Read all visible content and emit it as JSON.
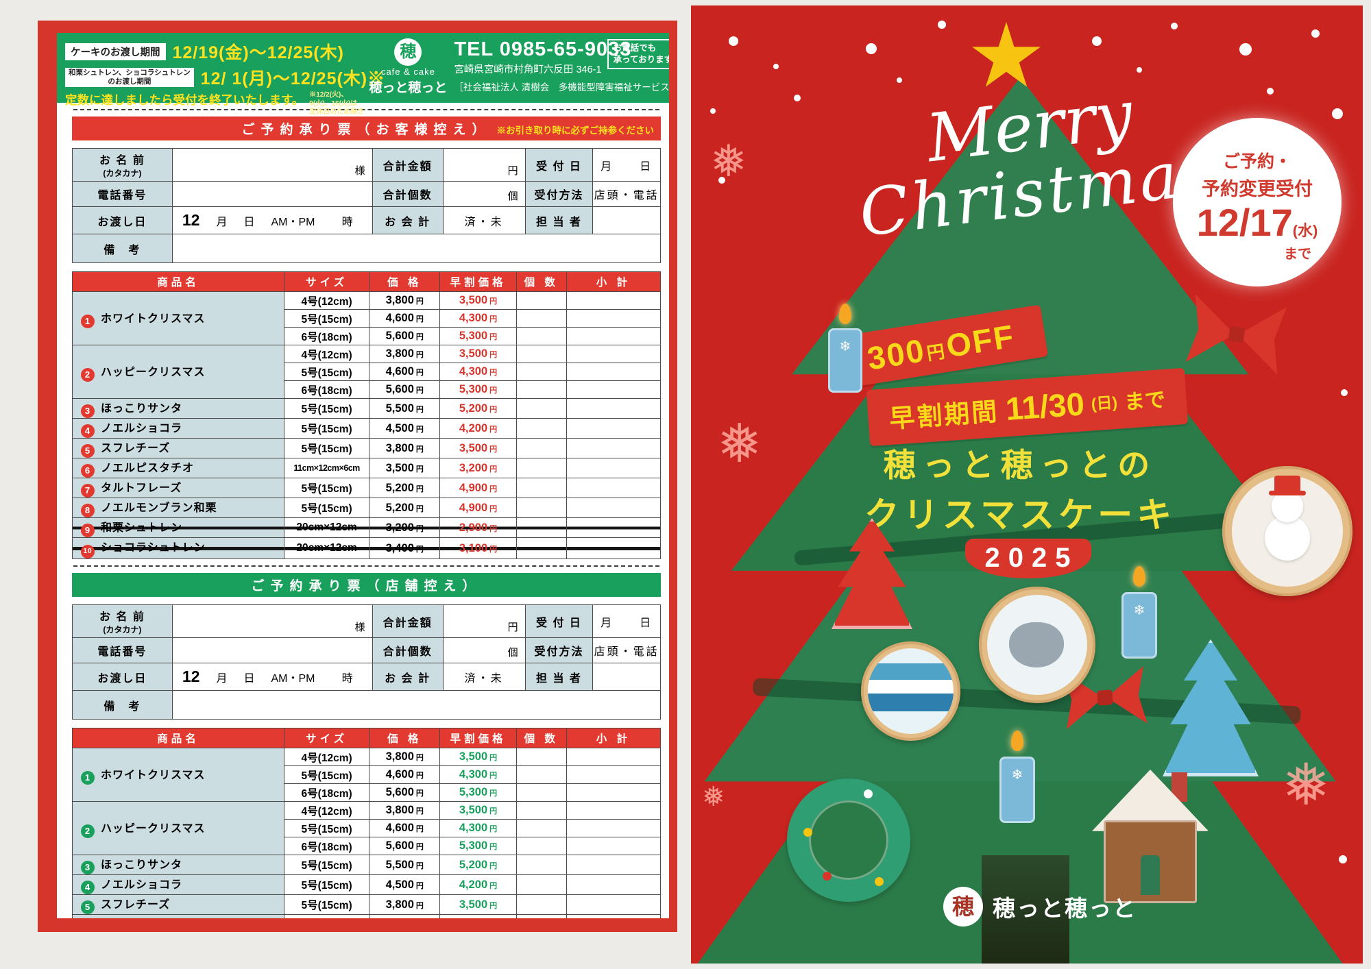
{
  "colors": {
    "accent_red": "#d6352c",
    "accent_green": "#18a05c",
    "highlight_yellow": "#ffe21f",
    "label_bg": "#ccdde1",
    "flyer_red": "#c9241f"
  },
  "left": {
    "header": {
      "period1_label": "ケーキのお渡し期間",
      "period1_value": "12/19(金)〜12/25(木)",
      "period2_label_line1": "和栗シュトレン、ショコラシュトレン",
      "period2_label_line2": "のお渡し期間",
      "period2_value": "12/ 1(月)〜12/25(木)※",
      "notice": "定数に達しましたら受付を終了いたします。",
      "note_line1": "※12/2(火)、9(火)、16(火)は",
      "note_line2": "定休日のため除きます。",
      "logo_mark": "穂",
      "logo_sub": "cafe & cake",
      "logo_name": "穂っと穂っと",
      "tel": "TEL 0985-65-9033",
      "address": "宮崎県宮崎市村角町六反田 346-1",
      "phone_note_line1": "お電話でも",
      "phone_note_line2": "承っております",
      "org": "［社会福祉法人 清樹会　多機能型障害福祉サービス］"
    },
    "form": {
      "name_label": "お 名 前",
      "name_label_sub": "(カタカナ)",
      "name_suffix": "様",
      "total_label": "合計金額",
      "total_suffix": "円",
      "receipt_label": "受 付 日",
      "receipt_value": "月　　日",
      "phone_label": "電話番号",
      "count_label": "合計個数",
      "count_suffix": "個",
      "method_label": "受付方法",
      "method_value": "店頭・電話",
      "delivery_label": "お渡し日",
      "delivery_month": "12",
      "delivery_month_label": "月",
      "delivery_day_label": "日",
      "delivery_ampm": "AM・PM",
      "delivery_hour_label": "時",
      "payment_label": "お 会 計",
      "payment_value": "済・未",
      "staff_label": "担 当 者",
      "notes_label": "備　考"
    },
    "table_headers": [
      "商品名",
      "サイズ",
      "価 格",
      "早割価格",
      "個 数",
      "小 計"
    ],
    "yen": "円",
    "products": [
      {
        "num": "1",
        "name": "ホワイトクリスマス",
        "struck": false,
        "rows": [
          [
            "4号(12cm)",
            "3,800",
            "3,500"
          ],
          [
            "5号(15cm)",
            "4,600",
            "4,300"
          ],
          [
            "6号(18cm)",
            "5,600",
            "5,300"
          ]
        ]
      },
      {
        "num": "2",
        "name": "ハッピークリスマス",
        "struck": false,
        "rows": [
          [
            "4号(12cm)",
            "3,800",
            "3,500"
          ],
          [
            "5号(15cm)",
            "4,600",
            "4,300"
          ],
          [
            "6号(18cm)",
            "5,600",
            "5,300"
          ]
        ]
      },
      {
        "num": "3",
        "name": "ほっこりサンタ",
        "struck": false,
        "rows": [
          [
            "5号(15cm)",
            "5,500",
            "5,200"
          ]
        ]
      },
      {
        "num": "4",
        "name": "ノエルショコラ",
        "struck": false,
        "rows": [
          [
            "5号(15cm)",
            "4,500",
            "4,200"
          ]
        ]
      },
      {
        "num": "5",
        "name": "スフレチーズ",
        "struck": false,
        "rows": [
          [
            "5号(15cm)",
            "3,800",
            "3,500"
          ]
        ]
      },
      {
        "num": "6",
        "name": "ノエルピスタチオ",
        "struck": false,
        "rows": [
          [
            "11cm×12cm×6cm",
            "3,500",
            "3,200"
          ]
        ]
      },
      {
        "num": "7",
        "name": "タルトフレーズ",
        "struck": false,
        "rows": [
          [
            "5号(15cm)",
            "5,200",
            "4,900"
          ]
        ]
      },
      {
        "num": "8",
        "name": "ノエルモンブラン和栗",
        "struck": false,
        "rows": [
          [
            "5号(15cm)",
            "5,200",
            "4,900"
          ]
        ]
      },
      {
        "num": "9",
        "name": "和栗シュトレン",
        "struck": true,
        "rows": [
          [
            "20cm×12cm",
            "3,200",
            "2,900"
          ]
        ]
      },
      {
        "num": "10",
        "name": "ショコラシュトレン",
        "struck": true,
        "rows": [
          [
            "20cm×12cm",
            "3,400",
            "3,100"
          ]
        ]
      }
    ],
    "sections": [
      {
        "accent": "red",
        "banner": "ご予約承り票（お客様控え）",
        "banner_note": "※お引き取り時に必ずご持参ください"
      },
      {
        "accent": "green",
        "banner": "ご予約承り票（店舗控え）",
        "banner_note": ""
      }
    ]
  },
  "right": {
    "title_line1": "Merry",
    "title_line2": "Christmas",
    "reserve_circle": {
      "line1": "ご予約・",
      "line2": "予約変更受付",
      "date": "12/17",
      "day": "(水)",
      "until": "まで"
    },
    "ribbon_off": {
      "amount": "300",
      "yen": "円",
      "off": "OFF"
    },
    "ribbon_period": {
      "label": "早割期間",
      "date": "11/30",
      "day": "(日)",
      "until": "まで"
    },
    "subtitle_line1": "穂っと穂っとの",
    "subtitle_line2": "クリスマスケーキ",
    "year": "2025",
    "logo_mark": "穂",
    "logo_name": "穂っと穂っと"
  }
}
